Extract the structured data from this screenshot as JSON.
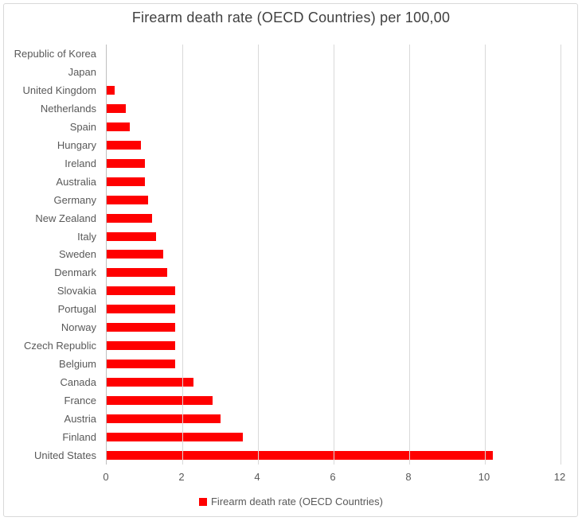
{
  "chart_data": {
    "type": "bar",
    "orientation": "horizontal",
    "title": "Firearm death rate (OECD Countries) per 100,00",
    "categories": [
      "Republic of Korea",
      "Japan",
      "United Kingdom",
      "Netherlands",
      "Spain",
      "Hungary",
      "Ireland",
      "Australia",
      "Germany",
      "New Zealand",
      "Italy",
      "Sweden",
      "Denmark",
      "Slovakia",
      "Portugal",
      "Norway",
      "Czech Republic",
      "Belgium",
      "Canada",
      "France",
      "Austria",
      "Finland",
      "United States"
    ],
    "values": [
      0,
      0,
      0.2,
      0.5,
      0.6,
      0.9,
      1.0,
      1.0,
      1.1,
      1.2,
      1.3,
      1.5,
      1.6,
      1.8,
      1.8,
      1.8,
      1.8,
      1.8,
      2.3,
      2.8,
      3.0,
      3.6,
      10.2
    ],
    "xlabel": "",
    "ylabel": "",
    "xlim": [
      0,
      12
    ],
    "xticks": [
      0,
      2,
      4,
      6,
      8,
      10,
      12
    ],
    "grid": true,
    "legend_position": "bottom",
    "legend_label": "Firearm death rate (OECD Countries)",
    "colors": {
      "bar": "#ff0000",
      "gridline": "#d9d9d9",
      "axis_line": "#bfbfbf",
      "tick_label": "#595959",
      "category_label": "#595959",
      "title": "#404040",
      "frame_border": "#d9d9d9"
    }
  }
}
